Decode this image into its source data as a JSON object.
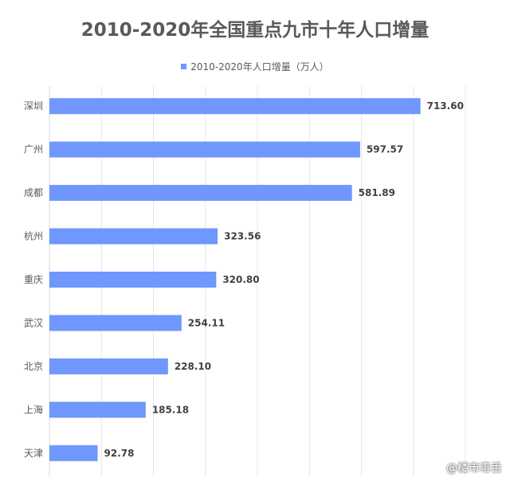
{
  "chart_data": {
    "type": "bar",
    "orientation": "horizontal",
    "title": "2010-2020年全国重点九市十年人口增量",
    "categories": [
      "深圳",
      "广州",
      "成都",
      "杭州",
      "重庆",
      "武汉",
      "北京",
      "上海",
      "天津"
    ],
    "series": [
      {
        "name": "2010-2020年人口增量（万人）",
        "values": [
          713.6,
          597.57,
          581.89,
          323.56,
          320.8,
          254.11,
          228.1,
          185.18,
          92.78
        ]
      }
    ],
    "value_labels": [
      "713.60",
      "597.57",
      "581.89",
      "323.56",
      "320.80",
      "254.11",
      "228.10",
      "185.18",
      "92.78"
    ],
    "xlim": [
      0,
      800
    ],
    "grid": true,
    "legend_position": "top",
    "bar_color": "#6f97fd"
  },
  "watermark": "@楼市毒舌"
}
